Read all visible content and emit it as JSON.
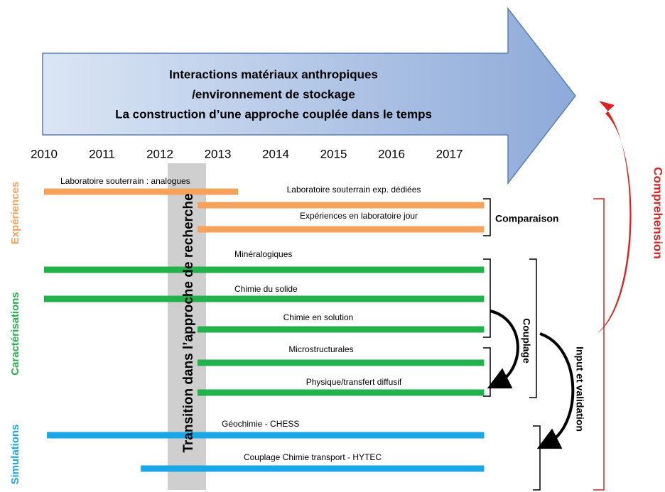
{
  "title_lines": [
    "Interactions matériaux anthropiques",
    "/environnement de stockage",
    "La construction d’une approche couplée dans le temps"
  ],
  "years": [
    2010,
    2011,
    2012,
    2013,
    2014,
    2015,
    2016,
    2017
  ],
  "groups": [
    {
      "label": "Expériences",
      "color": "#f5a25d"
    },
    {
      "label": "Caractérisations",
      "color": "#22b14c"
    },
    {
      "label": "Simulations",
      "color": "#1aa7e8"
    }
  ],
  "bars": [
    {
      "label": "Laboratoire souterrain : analogues",
      "group": 0,
      "start": 2010,
      "end": 2013.35
    },
    {
      "label": "Laboratoire souterrain exp. dédiées",
      "group": 0,
      "start": 2012.65,
      "end": 2017.6
    },
    {
      "label": "Expériences en laboratoire jour",
      "group": 0,
      "start": 2012.65,
      "end": 2017.6
    },
    {
      "label": "Minéralogiques",
      "group": 1,
      "start": 2010,
      "end": 2017.6
    },
    {
      "label": "Chimie du solide",
      "group": 1,
      "start": 2010,
      "end": 2017.6
    },
    {
      "label": "Chimie en solution",
      "group": 1,
      "start": 2012.65,
      "end": 2017.6
    },
    {
      "label": "Microstructurales",
      "group": 1,
      "start": 2012.65,
      "end": 2017.6
    },
    {
      "label": "Physique/transfert diffusif",
      "group": 1,
      "start": 2012.65,
      "end": 2017.6
    },
    {
      "label": "Géochimie - CHESS",
      "group": 2,
      "start": 2010.05,
      "end": 2017.6
    },
    {
      "label": "Couplage Chimie transport - HYTEC",
      "group": 2,
      "start": 2011.67,
      "end": 2017.6
    }
  ],
  "transition": "Transition dans l’approche de recherche",
  "comparaison": "Comparaison",
  "couplage": "Couplage",
  "input": "Input et validation",
  "comprehension": "Comprehension"
}
